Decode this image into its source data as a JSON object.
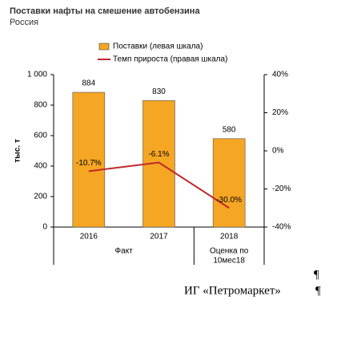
{
  "chart_data": {
    "type": "bar-line",
    "title": "Поставки нафты на смешение автобензина",
    "subtitle": "Россия",
    "ylabel": "тыс. т",
    "categories": [
      "2016",
      "2017",
      "2018"
    ],
    "group_labels": [
      [
        "Факт"
      ],
      [
        "Оценка по",
        "10мес18"
      ]
    ],
    "series": [
      {
        "name": "Поставки (левая шкала)",
        "type": "bar",
        "color": "#f5a623",
        "values": [
          884,
          830,
          580
        ]
      },
      {
        "name": "Темп прироста (правая шкала)",
        "type": "line",
        "axis": "y2",
        "color": "#c0272d",
        "values": [
          -10.7,
          -6.1,
          -30.0
        ],
        "value_labels": [
          "-10.7%",
          "-6.1%",
          "-30.0%"
        ]
      }
    ],
    "ylim": [
      0,
      1000
    ],
    "yticks": [
      0,
      200,
      400,
      600,
      800,
      {
        "value": 1000,
        "label": "1 000"
      }
    ],
    "y2lim": [
      -40,
      40
    ],
    "y2ticks": [
      {
        "value": -40,
        "label": "-40%"
      },
      {
        "value": -20,
        "label": "-20%"
      },
      {
        "value": 0,
        "label": "0%"
      },
      {
        "value": 20,
        "label": "20%"
      },
      {
        "value": 40,
        "label": "40%"
      }
    ],
    "legend": "top"
  },
  "footer": {
    "source": "ИГ «Петромаркет»",
    "pilcrows": [
      "¶",
      "¶"
    ]
  }
}
